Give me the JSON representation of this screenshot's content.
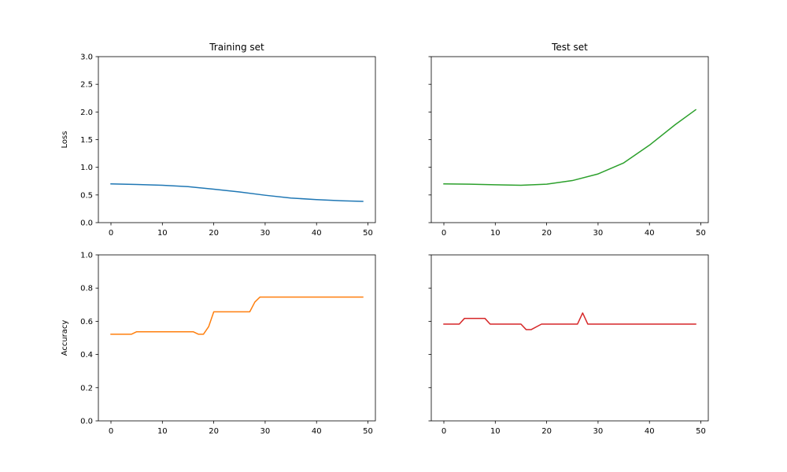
{
  "figure": {
    "background": "#ffffff"
  },
  "chart_data": [
    {
      "id": "train-loss",
      "type": "line",
      "title": "Training set",
      "xlabel": "",
      "ylabel": "Loss",
      "xlim": [
        -2.45,
        51.45
      ],
      "ylim": [
        0,
        3.0
      ],
      "xticks": [
        0,
        10,
        20,
        30,
        40,
        50
      ],
      "yticks": [
        0.0,
        0.5,
        1.0,
        1.5,
        2.0,
        2.5,
        3.0
      ],
      "ytick_labels": [
        "0.0",
        "0.5",
        "1.0",
        "1.5",
        "2.0",
        "2.5",
        "3.0"
      ],
      "show_ytick_labels": true,
      "grid": false,
      "series": [
        {
          "color": "#1f77b4",
          "x": [
            0,
            5,
            10,
            15,
            20,
            25,
            30,
            35,
            40,
            45,
            49
          ],
          "y": [
            0.7,
            0.69,
            0.675,
            0.65,
            0.605,
            0.555,
            0.495,
            0.445,
            0.415,
            0.395,
            0.385
          ]
        }
      ]
    },
    {
      "id": "test-loss",
      "type": "line",
      "title": "Test set",
      "xlabel": "",
      "ylabel": "",
      "xlim": [
        -2.45,
        51.45
      ],
      "ylim": [
        0,
        3.0
      ],
      "xticks": [
        0,
        10,
        20,
        30,
        40,
        50
      ],
      "yticks": [
        0.0,
        0.5,
        1.0,
        1.5,
        2.0,
        2.5,
        3.0
      ],
      "ytick_labels": [
        "0.0",
        "0.5",
        "1.0",
        "1.5",
        "2.0",
        "2.5",
        "3.0"
      ],
      "show_ytick_labels": false,
      "grid": false,
      "series": [
        {
          "color": "#2ca02c",
          "x": [
            0,
            5,
            10,
            15,
            20,
            25,
            30,
            35,
            40,
            45,
            49
          ],
          "y": [
            0.7,
            0.695,
            0.685,
            0.675,
            0.695,
            0.76,
            0.88,
            1.08,
            1.4,
            1.77,
            2.04
          ]
        }
      ]
    },
    {
      "id": "train-acc",
      "type": "line",
      "title": "",
      "xlabel": "",
      "ylabel": "Accuracy",
      "xlim": [
        -2.45,
        51.45
      ],
      "ylim": [
        0,
        1.0
      ],
      "xticks": [
        0,
        10,
        20,
        30,
        40,
        50
      ],
      "yticks": [
        0.0,
        0.2,
        0.4,
        0.6,
        0.8,
        1.0
      ],
      "ytick_labels": [
        "0.0",
        "0.2",
        "0.4",
        "0.6",
        "0.8",
        "1.0"
      ],
      "show_ytick_labels": true,
      "grid": false,
      "series": [
        {
          "color": "#ff7f0e",
          "x": [
            0,
            4,
            5,
            16,
            17,
            18,
            19,
            20,
            27,
            28,
            29,
            49
          ],
          "y": [
            0.522,
            0.522,
            0.537,
            0.537,
            0.522,
            0.522,
            0.567,
            0.657,
            0.657,
            0.716,
            0.746,
            0.746
          ]
        }
      ]
    },
    {
      "id": "test-acc",
      "type": "line",
      "title": "",
      "xlabel": "",
      "ylabel": "",
      "xlim": [
        -2.45,
        51.45
      ],
      "ylim": [
        0,
        1.0
      ],
      "xticks": [
        0,
        10,
        20,
        30,
        40,
        50
      ],
      "yticks": [
        0.0,
        0.2,
        0.4,
        0.6,
        0.8,
        1.0
      ],
      "ytick_labels": [
        "0.0",
        "0.2",
        "0.4",
        "0.6",
        "0.8",
        "1.0"
      ],
      "show_ytick_labels": false,
      "grid": false,
      "series": [
        {
          "color": "#d62728",
          "x": [
            0,
            3,
            4,
            8,
            9,
            15,
            16,
            17,
            19,
            26,
            27,
            28,
            49
          ],
          "y": [
            0.583,
            0.583,
            0.617,
            0.617,
            0.583,
            0.583,
            0.55,
            0.55,
            0.583,
            0.583,
            0.65,
            0.583,
            0.583
          ]
        }
      ]
    }
  ]
}
